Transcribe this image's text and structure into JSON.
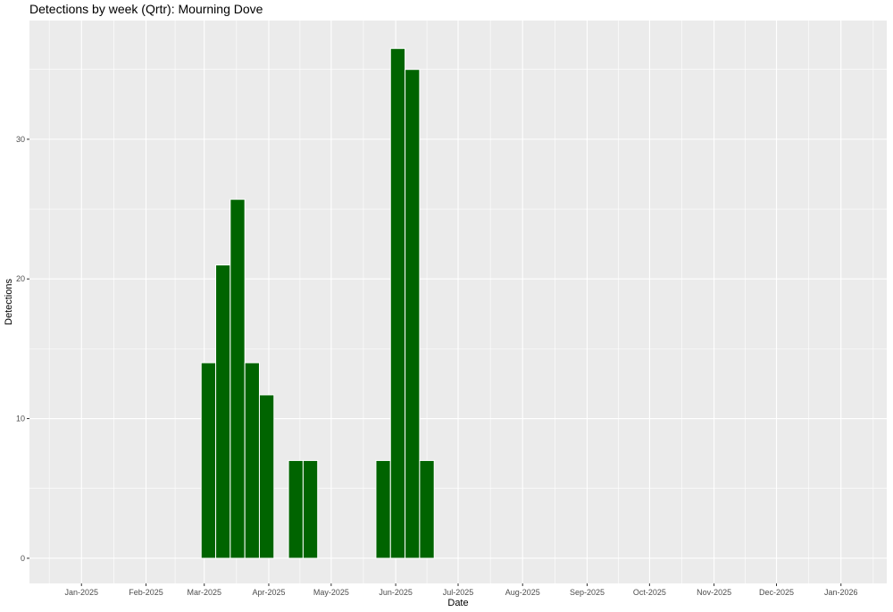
{
  "chart_data": {
    "type": "bar",
    "title": "Detections by week (Qrtr): Mourning Dove",
    "xlabel": "Date",
    "ylabel": "Detections",
    "x_ticks": [
      "Jan-2025",
      "Feb-2025",
      "Mar-2025",
      "Apr-2025",
      "May-2025",
      "Jun-2025",
      "Jul-2025",
      "Aug-2025",
      "Sep-2025",
      "Oct-2025",
      "Nov-2025",
      "Dec-2025",
      "Jan-2026"
    ],
    "y_ticks": [
      0,
      10,
      20,
      30
    ],
    "ylim": [
      -1.8,
      38.5
    ],
    "xlim": [
      "2024-12-07",
      "2026-01-23"
    ],
    "grid": true,
    "colors": {
      "bar": "#006400",
      "panel": "#ebebeb",
      "grid": "#ffffff"
    },
    "series": [
      {
        "x": [
          "2025-03-03",
          "2025-03-10",
          "2025-03-17",
          "2025-03-24",
          "2025-03-31",
          "2025-04-14",
          "2025-04-21",
          "2025-05-26",
          "2025-06-02",
          "2025-06-09",
          "2025-06-16"
        ],
        "values": [
          14,
          21,
          25.7,
          14,
          11.7,
          7,
          7,
          7,
          36.5,
          35,
          7
        ]
      }
    ]
  }
}
